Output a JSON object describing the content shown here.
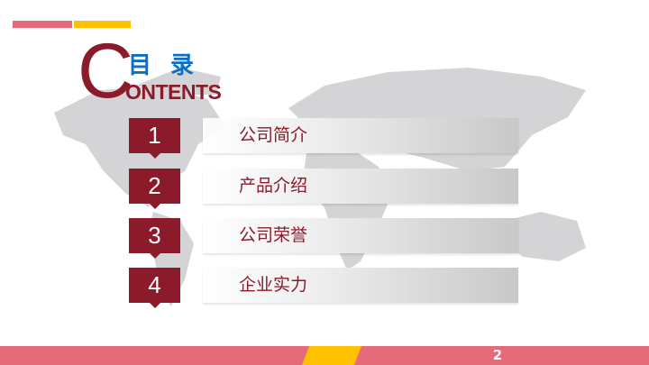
{
  "header": {
    "title": "目 录",
    "big_letter": "C",
    "subtitle": "ONTENTS"
  },
  "colors": {
    "accent": "#8b1a2b",
    "title_blue": "#0c6fc4",
    "pink": "#e56b7b",
    "yellow": "#ffc000"
  },
  "items": [
    {
      "number": "1",
      "label": "公司简介"
    },
    {
      "number": "2",
      "label": "产品介绍"
    },
    {
      "number": "3",
      "label": "公司荣誉"
    },
    {
      "number": "4",
      "label": "企业实力"
    }
  ],
  "footer": {
    "page_number": "2"
  }
}
